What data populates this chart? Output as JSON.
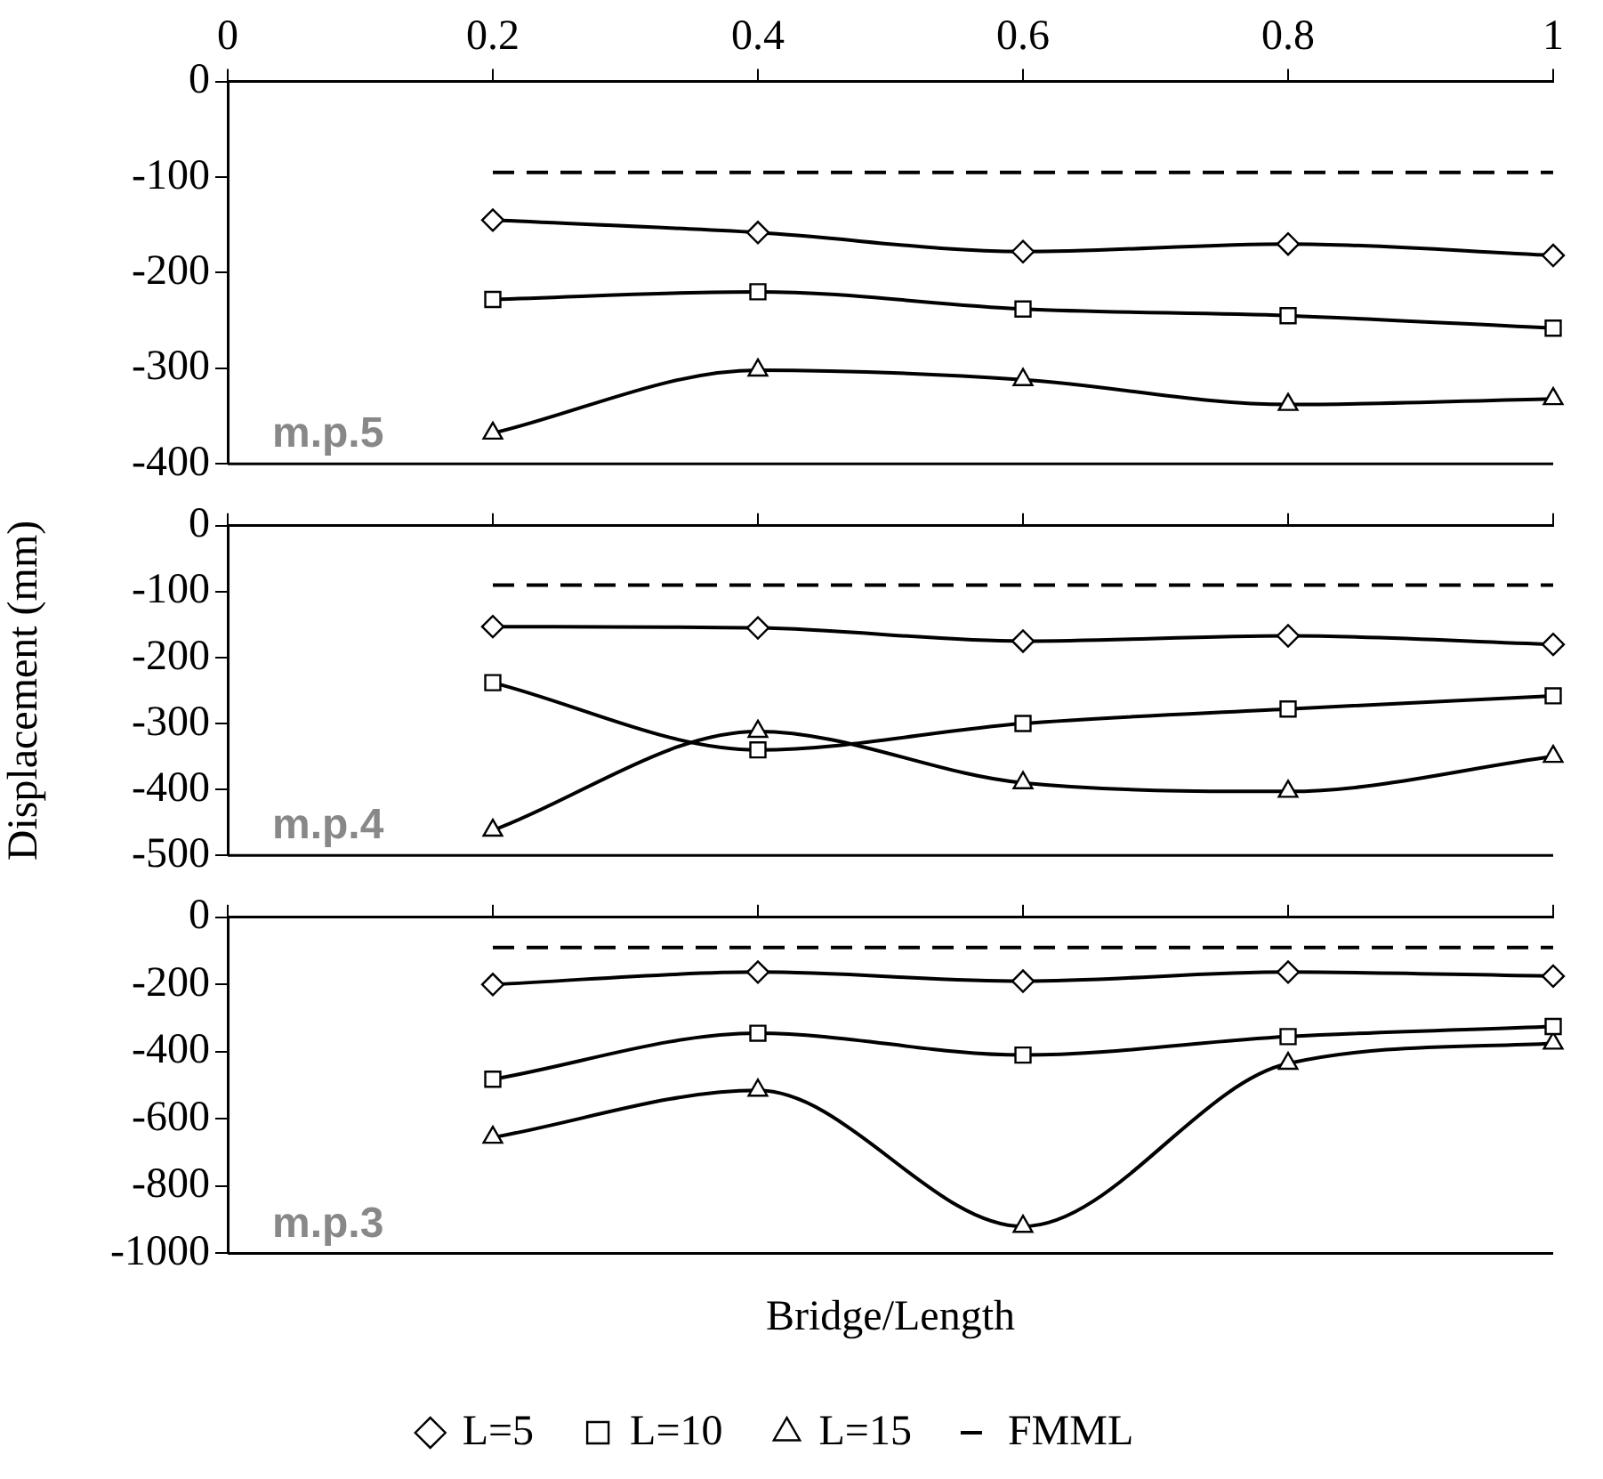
{
  "chart_data": [
    {
      "type": "line",
      "x": [
        0.2,
        0.4,
        0.6,
        0.8,
        1
      ],
      "xlim": [
        0,
        1
      ],
      "xticks": [
        0,
        0.2,
        0.4,
        0.6,
        0.8,
        1
      ],
      "ylim": [
        -400,
        0
      ],
      "yticks": [
        -400,
        -300,
        -200,
        -100,
        0
      ],
      "grid": false,
      "legend": false,
      "annotations": [
        "m.p.5"
      ],
      "series": [
        {
          "color": "#000000",
          "marker": "diamond",
          "values": [
            -145,
            -158,
            -178,
            -170,
            -182
          ]
        },
        {
          "color": "#000000",
          "marker": "square",
          "values": [
            -228,
            -220,
            -238,
            -245,
            -258
          ]
        },
        {
          "color": "#000000",
          "marker": "triangle",
          "values": [
            -368,
            -302,
            -312,
            -338,
            -332
          ]
        },
        {
          "color": "#000000",
          "marker": "none",
          "line_style": "dashed",
          "values": [
            -95,
            -95,
            -95,
            -95,
            -95
          ]
        }
      ]
    },
    {
      "type": "line",
      "x": [
        0.2,
        0.4,
        0.6,
        0.8,
        1
      ],
      "xlim": [
        0,
        1
      ],
      "ylim": [
        -500,
        0
      ],
      "yticks": [
        -500,
        -400,
        -300,
        -200,
        -100,
        0
      ],
      "tick_labels": "y",
      "ylabel": "Displacement (mm)",
      "grid": false,
      "legend": false,
      "annotations": [
        "m.p.4"
      ],
      "series": [
        {
          "color": "#000000",
          "marker": "diamond",
          "values": [
            -153,
            -155,
            -175,
            -167,
            -180
          ]
        },
        {
          "color": "#000000",
          "marker": "square",
          "values": [
            -238,
            -340,
            -300,
            -278,
            -258
          ]
        },
        {
          "color": "#000000",
          "marker": "triangle",
          "values": [
            -462,
            -312,
            -390,
            -403,
            -350
          ]
        },
        {
          "color": "#000000",
          "marker": "none",
          "line_style": "dashed",
          "values": [
            -90,
            -90,
            -90,
            -90,
            -90
          ]
        }
      ]
    },
    {
      "type": "line",
      "x": [
        0.2,
        0.4,
        0.6,
        0.8,
        1
      ],
      "xlim": [
        0,
        1
      ],
      "ylim": [
        -1000,
        0
      ],
      "yticks": [
        -1000,
        -800,
        -600,
        -400,
        -200,
        0
      ],
      "tick_labels": "y",
      "xlabel": "Bridge/Length",
      "grid": false,
      "legend": "bottom",
      "annotations": [
        "m.p.3"
      ],
      "series": [
        {
          "name": "L=5",
          "color": "#000000",
          "marker": "diamond",
          "values": [
            -200,
            -163,
            -190,
            -163,
            -175
          ]
        },
        {
          "name": "L=10",
          "color": "#000000",
          "marker": "square",
          "values": [
            -482,
            -345,
            -410,
            -355,
            -325
          ]
        },
        {
          "name": "L=15",
          "color": "#000000",
          "marker": "triangle",
          "values": [
            -655,
            -515,
            -920,
            -435,
            -375
          ]
        },
        {
          "name": "FMML",
          "color": "#000000",
          "marker": "none",
          "line_style": "dashed",
          "values": [
            -90,
            -90,
            -90,
            -90,
            -90
          ]
        }
      ]
    }
  ]
}
